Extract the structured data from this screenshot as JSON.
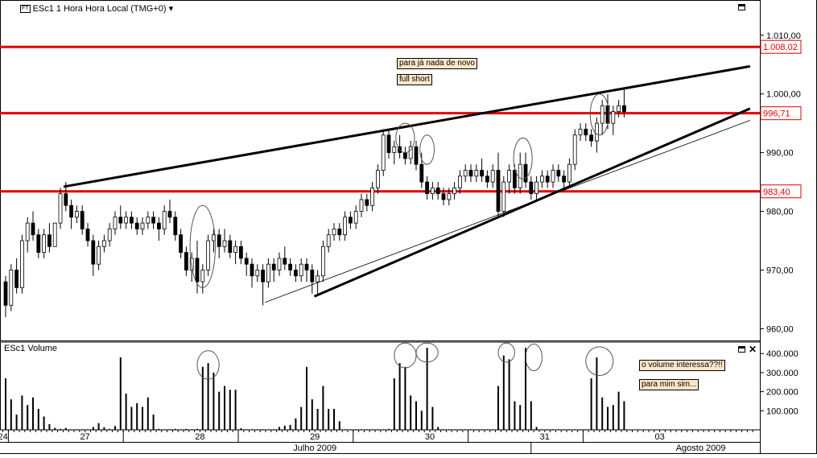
{
  "header": {
    "ft_badge": "FT",
    "title": "ESc1 1 Hora Hora Local (TMG+0)",
    "dropdown_arrow": "▾",
    "volume_title": "ESc1 Volume",
    "close_glyph": "✕"
  },
  "colors": {
    "hline": "#e00000",
    "trend": "#000000",
    "label_bg": "#fde6c8"
  },
  "annotations": {
    "note1": "para já nada de novo",
    "note2": "full short",
    "note3": "o volume interessa??!!",
    "note4": "para mim sim..."
  },
  "chart_data": [
    {
      "type": "candlestick",
      "y_range": [
        958,
        1016
      ],
      "y_ticks": [
        "960,00",
        "970,00",
        "980,00",
        "990,00",
        "1.000,00",
        "1.010,00"
      ],
      "y_tick_values": [
        960,
        970,
        980,
        990,
        1000,
        1010
      ],
      "levels": [
        {
          "value": 1008.02,
          "label": "1.008,02"
        },
        {
          "value": 996.71,
          "label": "996,71"
        },
        {
          "value": 983.4,
          "label": "983,40"
        }
      ],
      "trendlines": [
        {
          "x1": 10.6,
          "y1": 984.2,
          "x2": 136,
          "y2": 1004.7,
          "style": "thick"
        },
        {
          "x1": 56.4,
          "y1": 965.5,
          "x2": 136,
          "y2": 997.5,
          "style": "thick"
        },
        {
          "x1": 47.4,
          "y1": 964.5,
          "x2": 136,
          "y2": 995.5,
          "style": "thin"
        }
      ],
      "ellipses": [
        {
          "cx": 36,
          "cy": 974,
          "rx": 2.3,
          "ry": 7
        },
        {
          "cx": 73,
          "cy": 992.5,
          "rx": 1.7,
          "ry": 2.5
        },
        {
          "cx": 77,
          "cy": 990.5,
          "rx": 1.3,
          "ry": 2.5
        },
        {
          "cx": 94.5,
          "cy": 989,
          "rx": 1.7,
          "ry": 3.5
        },
        {
          "cx": 108.5,
          "cy": 996.5,
          "rx": 1.7,
          "ry": 3.5
        }
      ],
      "candles": [
        [
          0,
          968,
          969,
          962,
          964
        ],
        [
          1,
          964,
          971,
          963,
          970
        ],
        [
          2,
          970,
          972,
          966,
          967
        ],
        [
          3,
          967,
          976,
          966,
          975
        ],
        [
          4,
          975,
          979,
          973,
          978
        ],
        [
          5,
          978,
          980,
          975,
          976
        ],
        [
          6,
          976,
          977,
          972,
          973
        ],
        [
          7,
          973,
          977,
          972,
          976
        ],
        [
          8,
          976,
          978,
          973,
          974
        ],
        [
          9,
          974,
          978,
          974,
          978
        ],
        [
          10,
          978,
          984,
          977,
          983
        ],
        [
          11,
          983,
          985,
          980,
          981
        ],
        [
          12,
          981,
          982,
          977,
          979
        ],
        [
          13,
          979,
          981,
          978,
          980
        ],
        [
          14,
          980,
          981,
          976,
          977
        ],
        [
          15,
          977,
          978,
          974,
          975
        ],
        [
          16,
          975,
          976,
          969,
          971
        ],
        [
          17,
          971,
          975,
          970,
          974
        ],
        [
          18,
          974,
          976,
          973,
          975
        ],
        [
          19,
          975,
          978,
          974,
          977
        ],
        [
          20,
          977,
          980,
          976,
          979
        ],
        [
          21,
          979,
          981,
          977,
          978
        ],
        [
          22,
          978,
          980,
          977,
          979
        ],
        [
          23,
          979,
          980,
          977,
          978
        ],
        [
          24,
          978,
          979,
          976,
          977
        ],
        [
          25,
          977,
          979,
          976,
          978
        ],
        [
          26,
          978,
          980,
          977,
          979
        ],
        [
          27,
          979,
          980,
          977,
          978
        ],
        [
          28,
          978,
          979,
          975,
          977
        ],
        [
          29,
          977,
          981,
          976,
          980
        ],
        [
          30,
          980,
          982,
          978,
          979
        ],
        [
          31,
          979,
          980,
          975,
          976
        ],
        [
          32,
          976,
          977,
          972,
          973
        ],
        [
          33,
          973,
          974,
          969,
          970
        ],
        [
          34,
          970,
          973,
          968,
          972
        ],
        [
          35,
          972,
          975,
          966,
          968
        ],
        [
          36,
          968,
          971,
          966,
          970
        ],
        [
          37,
          970,
          976,
          969,
          975
        ],
        [
          38,
          975,
          977,
          973,
          976
        ],
        [
          39,
          976,
          977,
          972,
          974
        ],
        [
          40,
          974,
          977,
          973,
          975
        ],
        [
          41,
          975,
          976,
          972,
          973
        ],
        [
          42,
          973,
          975,
          971,
          974
        ],
        [
          43,
          974,
          975,
          971,
          972
        ],
        [
          44,
          972,
          973,
          969,
          971
        ],
        [
          45,
          971,
          972,
          967,
          969
        ],
        [
          46,
          969,
          971,
          968,
          970
        ],
        [
          47,
          970,
          971,
          964,
          968
        ],
        [
          48,
          968,
          972,
          967,
          971
        ],
        [
          49,
          971,
          972,
          968,
          970
        ],
        [
          50,
          970,
          973,
          969,
          972
        ],
        [
          51,
          972,
          974,
          970,
          971
        ],
        [
          52,
          971,
          972,
          969,
          970
        ],
        [
          53,
          970,
          971,
          968,
          969
        ],
        [
          54,
          969,
          972,
          968,
          971
        ],
        [
          55,
          971,
          972,
          968,
          970
        ],
        [
          56,
          970,
          971,
          966,
          968
        ],
        [
          57,
          968,
          970,
          966,
          969
        ],
        [
          58,
          969,
          975,
          968,
          974
        ],
        [
          59,
          974,
          977,
          973,
          976
        ],
        [
          60,
          976,
          978,
          975,
          977
        ],
        [
          61,
          977,
          978,
          975,
          976
        ],
        [
          62,
          976,
          980,
          975,
          979
        ],
        [
          63,
          979,
          980,
          977,
          978
        ],
        [
          64,
          978,
          981,
          977,
          980
        ],
        [
          65,
          980,
          983,
          979,
          982
        ],
        [
          66,
          982,
          983,
          980,
          981
        ],
        [
          67,
          981,
          985,
          980,
          984
        ],
        [
          68,
          984,
          988,
          983,
          987
        ],
        [
          69,
          987,
          994,
          986,
          993
        ],
        [
          70,
          993,
          994,
          989,
          990
        ],
        [
          71,
          990,
          992,
          988,
          991
        ],
        [
          72,
          991,
          993,
          989,
          990
        ],
        [
          73,
          990,
          991,
          988,
          989
        ],
        [
          74,
          989,
          992,
          988,
          991
        ],
        [
          75,
          991,
          992,
          987,
          988
        ],
        [
          76,
          988,
          990,
          984,
          985
        ],
        [
          77,
          985,
          986,
          982,
          983
        ],
        [
          78,
          983,
          985,
          982,
          984
        ],
        [
          79,
          984,
          985,
          982,
          983
        ],
        [
          80,
          983,
          984,
          981,
          982
        ],
        [
          81,
          982,
          984,
          981,
          983
        ],
        [
          82,
          983,
          985,
          982,
          984
        ],
        [
          83,
          984,
          987,
          983,
          986
        ],
        [
          84,
          986,
          988,
          985,
          987
        ],
        [
          85,
          987,
          988,
          985,
          986
        ],
        [
          86,
          986,
          988,
          985,
          987
        ],
        [
          87,
          987,
          989,
          985,
          986
        ],
        [
          88,
          986,
          987,
          984,
          985
        ],
        [
          89,
          985,
          988,
          984,
          987
        ],
        [
          90,
          987,
          990,
          979,
          980
        ],
        [
          91,
          980,
          986,
          979,
          985
        ],
        [
          92,
          985,
          988,
          983,
          987
        ],
        [
          93,
          987,
          988,
          983,
          984
        ],
        [
          94,
          984,
          990,
          983,
          988
        ],
        [
          95,
          988,
          990,
          984,
          985
        ],
        [
          96,
          985,
          986,
          982,
          983
        ],
        [
          97,
          983,
          986,
          982,
          985
        ],
        [
          98,
          985,
          987,
          984,
          986
        ],
        [
          99,
          986,
          987,
          984,
          985
        ],
        [
          100,
          985,
          988,
          984,
          987
        ],
        [
          101,
          987,
          988,
          985,
          986
        ],
        [
          102,
          986,
          987,
          984,
          985
        ],
        [
          103,
          985,
          989,
          984,
          988
        ],
        [
          104,
          988,
          994,
          987,
          993
        ],
        [
          105,
          993,
          995,
          992,
          994
        ],
        [
          106,
          994,
          995,
          992,
          993
        ],
        [
          107,
          993,
          994,
          991,
          992
        ],
        [
          108,
          992,
          996,
          990,
          995
        ],
        [
          109,
          995,
          999,
          993,
          998
        ],
        [
          110,
          998,
          1000,
          994,
          995
        ],
        [
          111,
          995,
          998,
          993,
          997
        ],
        [
          112,
          997,
          999,
          996,
          998
        ],
        [
          113,
          998,
          1001,
          996,
          997
        ]
      ]
    },
    {
      "type": "bar",
      "y_range": [
        0,
        460000
      ],
      "y_ticks": [
        "100.000",
        "200.000",
        "300.000",
        "400.000"
      ],
      "y_tick_values": [
        100000,
        200000,
        300000,
        400000
      ],
      "ellipses": [
        {
          "cx": 37,
          "cy": 340000,
          "rx": 2,
          "ry": 75000
        },
        {
          "cx": 73,
          "cy": 390000,
          "rx": 2,
          "ry": 65000
        },
        {
          "cx": 77,
          "cy": 405000,
          "rx": 2,
          "ry": 50000
        },
        {
          "cx": 91.5,
          "cy": 405000,
          "rx": 1.5,
          "ry": 50000
        },
        {
          "cx": 96.5,
          "cy": 380000,
          "rx": 1.5,
          "ry": 70000
        },
        {
          "cx": 108.5,
          "cy": 360000,
          "rx": 2.5,
          "ry": 75000
        }
      ],
      "values": [
        270000,
        160000,
        80000,
        180000,
        130000,
        170000,
        110000,
        70000,
        30000,
        10000,
        5000,
        10000,
        3000,
        3000,
        3000,
        3000,
        15000,
        35000,
        14000,
        5000,
        20000,
        380000,
        190000,
        120000,
        140000,
        120000,
        170000,
        80000,
        5000,
        3000,
        3000,
        5000,
        3000,
        5000,
        3000,
        5000,
        330000,
        350000,
        300000,
        200000,
        230000,
        210000,
        210000,
        8000,
        3000,
        3000,
        3000,
        3000,
        3000,
        3000,
        15000,
        22000,
        26000,
        60000,
        120000,
        330000,
        160000,
        110000,
        230000,
        110000,
        110000,
        45000,
        3000,
        3000,
        3000,
        3000,
        3000,
        3000,
        3000,
        3000,
        5000,
        270000,
        350000,
        330000,
        180000,
        150000,
        100000,
        430000,
        120000,
        15000,
        3000,
        3000,
        3000,
        3000,
        3000,
        3000,
        3000,
        3000,
        3000,
        3000,
        230000,
        390000,
        370000,
        150000,
        130000,
        430000,
        150000,
        15000,
        3000,
        3000,
        3000,
        3000,
        3000,
        3000,
        3000,
        3000,
        3000,
        270000,
        380000,
        170000,
        120000,
        130000,
        200000,
        150000
      ]
    }
  ],
  "x_axis": {
    "day_labels": [
      {
        "text": "24",
        "slot": -0.5
      },
      {
        "text": "27",
        "slot": 14.5
      },
      {
        "text": "28",
        "slot": 35.5
      },
      {
        "text": "29",
        "slot": 56.5
      },
      {
        "text": "30",
        "slot": 77.5
      },
      {
        "text": "31",
        "slot": 98.5
      },
      {
        "text": "03",
        "slot": 119.5
      }
    ],
    "month_labels": [
      {
        "text": "Julho 2009",
        "slot": 56.5
      },
      {
        "text": "Agosto 2009",
        "slot": 127
      }
    ]
  }
}
